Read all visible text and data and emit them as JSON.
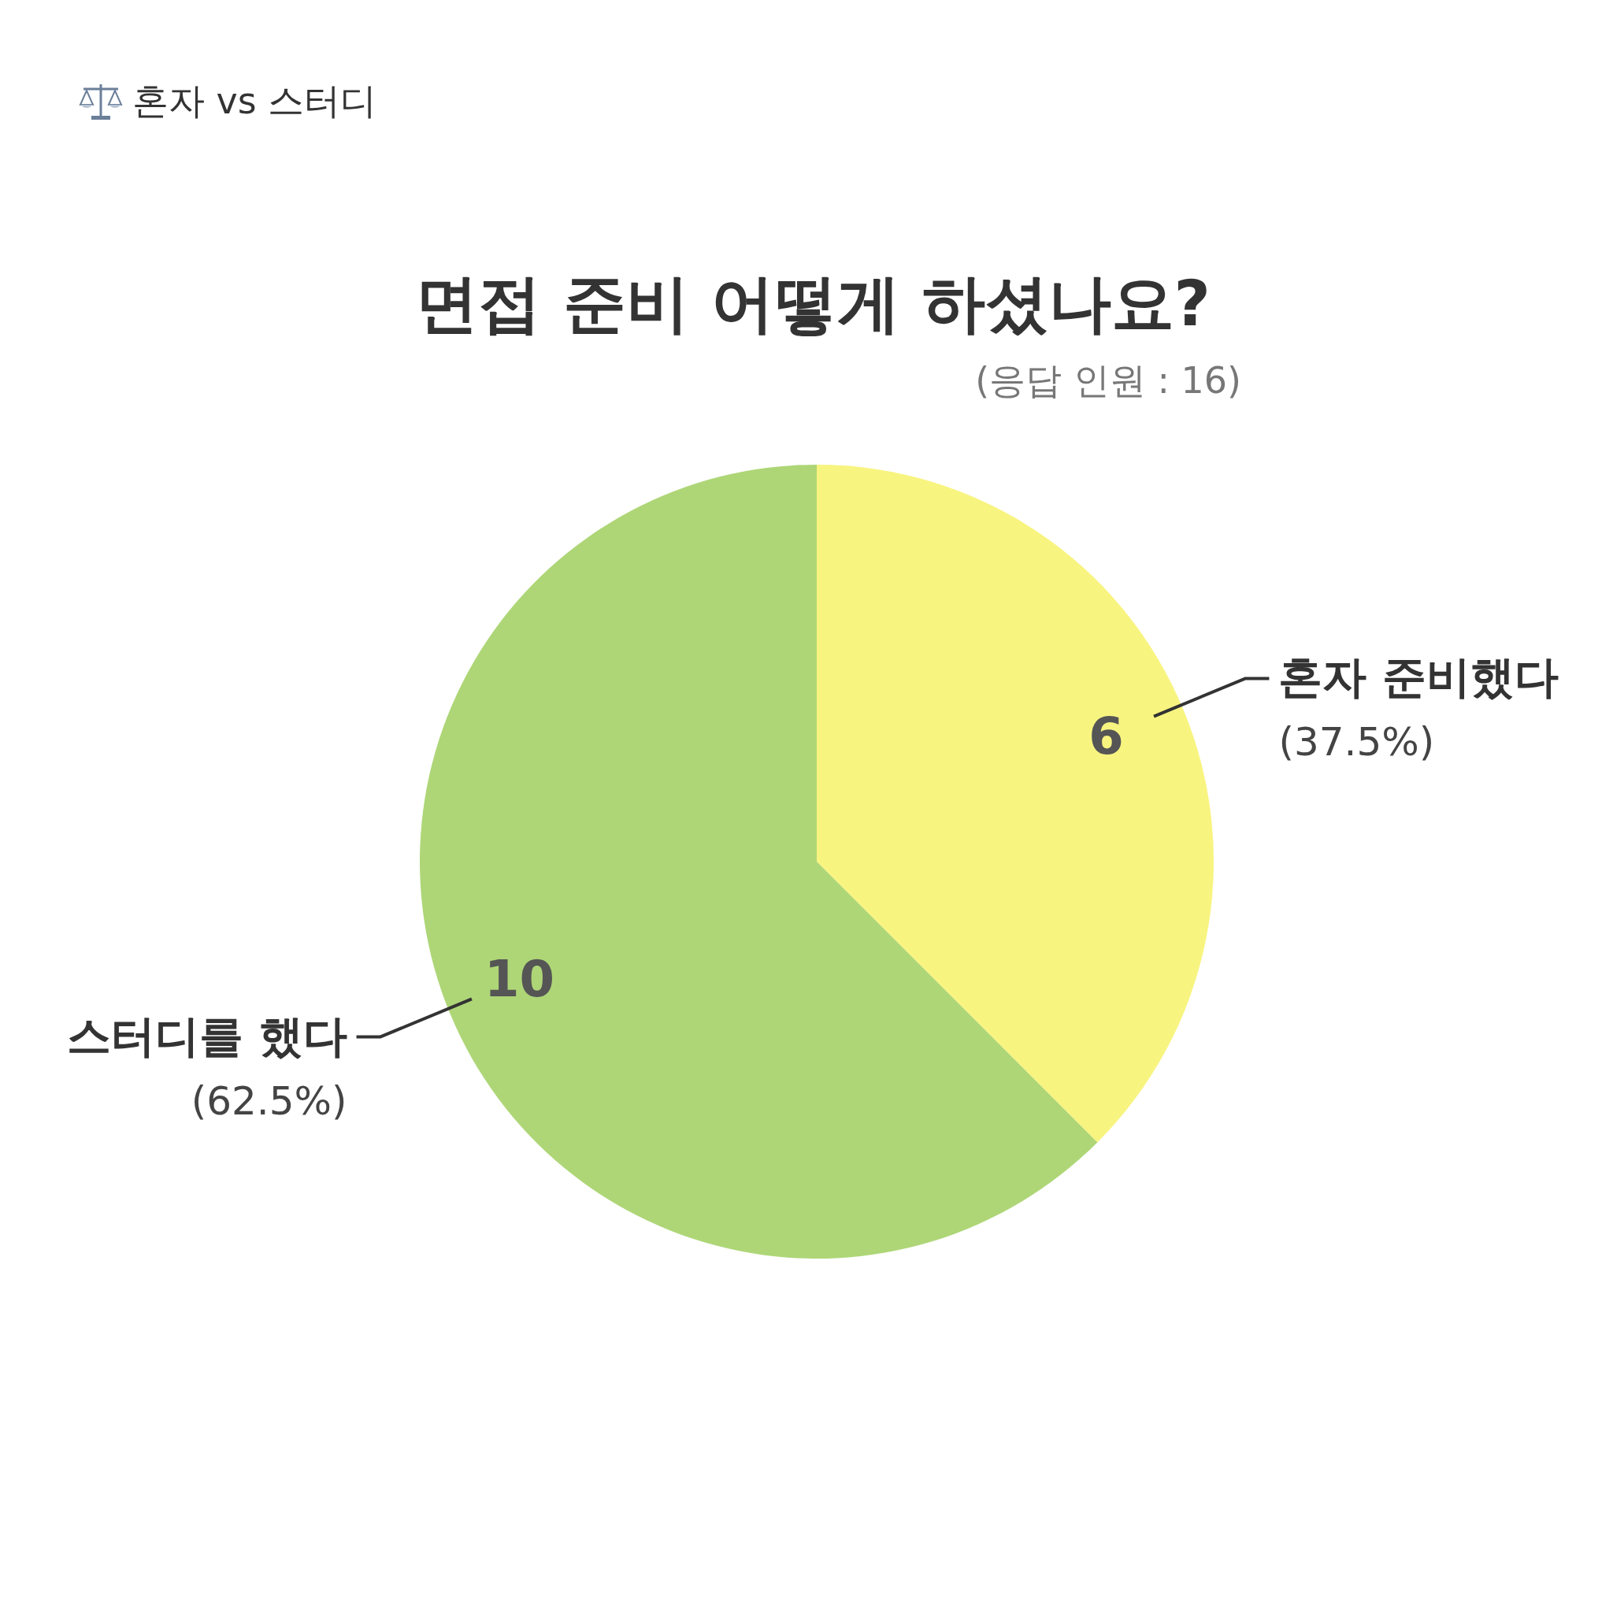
{
  "chart_data": {
    "type": "pie",
    "title": "면접 준비 어떻게 하셨나요?",
    "subtitle": "(응답 인원 : 16)",
    "annotations": [
      "혼자 vs 스터디"
    ],
    "categories": [
      "혼자 준비했다\n(37.5%)",
      "스터디를 했다\n(62.5%)"
    ],
    "values": [
      6,
      10
    ],
    "colors": [
      "#f8f480",
      "#aed677"
    ],
    "data_labels": true
  }
}
